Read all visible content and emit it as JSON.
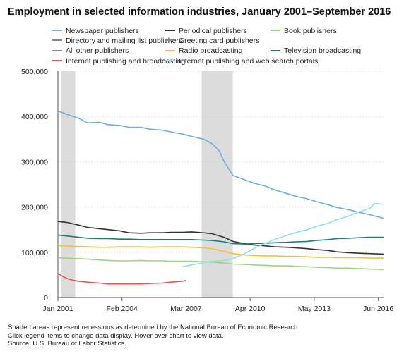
{
  "chart_data": {
    "type": "line",
    "title": "Employment in selected information industries, January 2001–September 2016",
    "xlabel": "",
    "ylabel": "",
    "x_start": "2001-01",
    "x_end": "2016-09",
    "ylim": [
      0,
      500000
    ],
    "yticks": [
      0,
      100000,
      200000,
      300000,
      400000,
      500000
    ],
    "ytick_labels": [
      "0",
      "100,000",
      "200,000",
      "300,000",
      "400,000",
      "500,000"
    ],
    "xtick_dates": [
      "2001-01",
      "2004-02",
      "2007-03",
      "2010-04",
      "2013-05",
      "2016-06"
    ],
    "xtick_labels": [
      "Jan 2001",
      "Feb 2004",
      "Mar 2007",
      "Apr 2010",
      "May 2013",
      "Jun 2016"
    ],
    "grid": "horizontal dotted",
    "legend_position": "top",
    "recessions": [
      {
        "start": "2001-03",
        "end": "2001-11"
      },
      {
        "start": "2007-12",
        "end": "2009-06"
      }
    ],
    "series": [
      {
        "name": "Newspaper publishers",
        "color": "#6aaee0",
        "x": [
          "2001-01",
          "2001-06",
          "2002-01",
          "2002-06",
          "2003-01",
          "2003-06",
          "2004-01",
          "2004-06",
          "2005-01",
          "2005-06",
          "2006-01",
          "2006-06",
          "2007-01",
          "2007-06",
          "2008-01",
          "2008-06",
          "2008-10",
          "2009-01",
          "2009-06",
          "2010-01",
          "2010-06",
          "2011-01",
          "2011-06",
          "2012-01",
          "2012-06",
          "2013-01",
          "2013-06",
          "2014-01",
          "2014-06",
          "2015-01",
          "2015-06",
          "2016-01",
          "2016-09"
        ],
        "values": [
          412000,
          405000,
          396000,
          386000,
          387000,
          382000,
          380000,
          376000,
          376000,
          372000,
          370000,
          366000,
          361000,
          356000,
          350000,
          340000,
          325000,
          300000,
          270000,
          260000,
          253000,
          246000,
          238000,
          230000,
          224000,
          218000,
          212000,
          205000,
          199000,
          194000,
          189000,
          183000,
          175000
        ]
      },
      {
        "name": "Periodical publishers",
        "color": "#333333",
        "x": [
          "2001-01",
          "2001-06",
          "2002-01",
          "2002-06",
          "2003-01",
          "2003-06",
          "2004-01",
          "2004-06",
          "2005-01",
          "2005-06",
          "2006-01",
          "2006-06",
          "2007-01",
          "2007-06",
          "2008-01",
          "2008-06",
          "2009-01",
          "2009-06",
          "2010-01",
          "2010-06",
          "2011-01",
          "2011-06",
          "2012-01",
          "2012-06",
          "2013-01",
          "2013-06",
          "2014-01",
          "2014-06",
          "2015-01",
          "2015-06",
          "2016-01",
          "2016-09"
        ],
        "values": [
          168000,
          166000,
          160000,
          155000,
          152000,
          150000,
          147000,
          143000,
          142000,
          143000,
          143000,
          144000,
          144000,
          145000,
          143000,
          141000,
          133000,
          124000,
          119000,
          116000,
          114000,
          112000,
          111000,
          110000,
          108000,
          106000,
          104000,
          101000,
          99000,
          98000,
          97000,
          96000
        ]
      },
      {
        "name": "Book publishers",
        "color": "#9ad67e",
        "x": [
          "2001-01",
          "2001-06",
          "2002-01",
          "2002-06",
          "2003-01",
          "2003-06",
          "2004-01",
          "2004-06",
          "2005-01",
          "2005-06",
          "2006-01",
          "2006-06",
          "2007-01",
          "2007-06",
          "2008-01",
          "2008-06",
          "2009-01",
          "2009-06",
          "2010-01",
          "2010-06",
          "2011-01",
          "2011-06",
          "2012-01",
          "2012-06",
          "2013-01",
          "2013-06",
          "2014-01",
          "2014-06",
          "2015-01",
          "2015-06",
          "2016-01",
          "2016-09"
        ],
        "values": [
          88000,
          87000,
          86000,
          85000,
          83000,
          82000,
          81000,
          81000,
          82000,
          81000,
          81000,
          80000,
          80000,
          80000,
          79000,
          78000,
          76000,
          74000,
          73000,
          72000,
          71000,
          70000,
          70000,
          69000,
          68000,
          67000,
          66000,
          65000,
          65000,
          64000,
          63000,
          62000
        ]
      },
      {
        "name": "Directory and mailing list publishers",
        "color": "#888888",
        "x": [],
        "values": []
      },
      {
        "name": "Greeting card publishers",
        "color": "#888888",
        "x": [],
        "values": []
      },
      {
        "name": "All other publishers",
        "color": "#888888",
        "x": [],
        "values": []
      },
      {
        "name": "Radio broadcasting",
        "color": "#f2c430",
        "x": [
          "2001-01",
          "2001-06",
          "2002-01",
          "2002-06",
          "2003-01",
          "2003-06",
          "2004-01",
          "2004-06",
          "2005-01",
          "2005-06",
          "2006-01",
          "2006-06",
          "2007-01",
          "2007-06",
          "2008-01",
          "2008-06",
          "2009-01",
          "2009-06",
          "2010-01",
          "2010-06",
          "2011-01",
          "2011-06",
          "2012-01",
          "2012-06",
          "2013-01",
          "2013-06",
          "2014-01",
          "2014-06",
          "2015-01",
          "2015-06",
          "2016-01",
          "2016-09"
        ],
        "values": [
          115000,
          114000,
          113000,
          112000,
          111000,
          111000,
          112000,
          112000,
          112000,
          111000,
          112000,
          112000,
          112000,
          111000,
          110000,
          108000,
          102000,
          97000,
          94000,
          93000,
          92000,
          92000,
          91000,
          91000,
          90000,
          89000,
          89000,
          88000,
          88000,
          88000,
          87000,
          87000
        ]
      },
      {
        "name": "Television broadcasting",
        "color": "#1e7b7a",
        "x": [
          "2001-01",
          "2001-06",
          "2002-01",
          "2002-06",
          "2003-01",
          "2003-06",
          "2004-01",
          "2004-06",
          "2005-01",
          "2005-06",
          "2006-01",
          "2006-06",
          "2007-01",
          "2007-06",
          "2008-01",
          "2008-06",
          "2009-01",
          "2009-06",
          "2010-01",
          "2010-06",
          "2011-01",
          "2011-06",
          "2012-01",
          "2012-06",
          "2013-01",
          "2013-06",
          "2014-01",
          "2014-06",
          "2015-01",
          "2015-06",
          "2016-01",
          "2016-09"
        ],
        "values": [
          138000,
          136000,
          133000,
          131000,
          130000,
          130000,
          129000,
          129000,
          128000,
          128000,
          128000,
          128000,
          128000,
          128000,
          127000,
          126000,
          123000,
          119000,
          118000,
          119000,
          120000,
          121000,
          122000,
          123000,
          124000,
          126000,
          128000,
          130000,
          131000,
          132000,
          133000,
          133000
        ]
      },
      {
        "name": "Internet publishing and broadcasting",
        "color": "#e8544c",
        "x": [
          "2001-01",
          "2001-04",
          "2001-07",
          "2001-10",
          "2002-01",
          "2002-06",
          "2003-01",
          "2003-06",
          "2004-01",
          "2004-06",
          "2005-01",
          "2005-06",
          "2006-01",
          "2006-06",
          "2007-01",
          "2007-03"
        ],
        "values": [
          53000,
          46000,
          41000,
          38000,
          36000,
          34000,
          32000,
          30000,
          30000,
          30000,
          30000,
          31000,
          32000,
          34000,
          36000,
          38000
        ]
      },
      {
        "name": "Internet publishing and web search portals",
        "color": "#8ee0e3",
        "x": [
          "2007-01",
          "2007-06",
          "2008-01",
          "2008-06",
          "2009-01",
          "2009-06",
          "2010-01",
          "2010-06",
          "2011-01",
          "2011-06",
          "2012-01",
          "2012-06",
          "2013-01",
          "2013-06",
          "2014-01",
          "2014-06",
          "2015-01",
          "2015-06",
          "2016-01",
          "2016-04",
          "2016-09"
        ],
        "values": [
          68000,
          72000,
          77000,
          80000,
          82000,
          86000,
          97000,
          108000,
          120000,
          128000,
          137000,
          143000,
          150000,
          157000,
          164000,
          172000,
          180000,
          188000,
          197000,
          208000,
          206000
        ]
      }
    ]
  },
  "legend_items": [
    "Newspaper publishers",
    "Periodical publishers",
    "Book publishers",
    "Directory and mailing list publishers",
    "Greeting card publishers",
    "All other publishers",
    "Radio broadcasting",
    "Television broadcasting",
    "Internet publishing and broadcasting",
    "Internet publishing and web search portals"
  ],
  "footnotes": [
    "Shaded areas represent recessions as determined by the National Bureau of Economic Research.",
    "Click legend items to change data display. Hover over chart to view data.",
    "Source: U.S. Bureau of Labor Statistics."
  ]
}
